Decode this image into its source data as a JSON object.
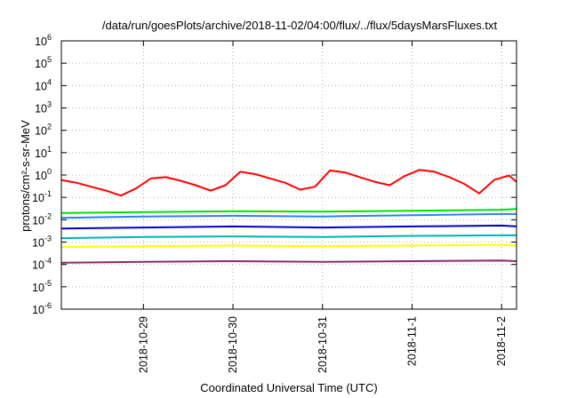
{
  "chart_data": {
    "type": "line",
    "title": "/data/run/goesPlots/archive/2018-11-02/04:00/flux/../flux/5daysMarsFluxes.txt",
    "xlabel": "Coordinated Universal Time (UTC)",
    "ylabel": "protons/cm²-s-sr-MeV",
    "y_scale": "log",
    "ylim": [
      1e-06,
      1000000.0
    ],
    "xlim": [
      "2018-10-28T02:00",
      "2018-11-02T04:00"
    ],
    "grid": true,
    "x_ticks": [
      "2018-10-29",
      "2018-10-30",
      "2018-10-31",
      "2018-11-1",
      "2018-11-2"
    ],
    "y_ticks": [
      {
        "base": "10",
        "exp": "-6"
      },
      {
        "base": "10",
        "exp": "-5"
      },
      {
        "base": "10",
        "exp": "-4"
      },
      {
        "base": "10",
        "exp": "-3"
      },
      {
        "base": "10",
        "exp": "-2"
      },
      {
        "base": "10",
        "exp": "-1"
      },
      {
        "base": "10",
        "exp": "0"
      },
      {
        "base": "10",
        "exp": "1"
      },
      {
        "base": "10",
        "exp": "2"
      },
      {
        "base": "10",
        "exp": "3"
      },
      {
        "base": "10",
        "exp": "4"
      },
      {
        "base": "10",
        "exp": "5"
      },
      {
        "base": "10",
        "exp": "6"
      }
    ],
    "series": [
      {
        "color": "#ff0000",
        "x": [
          "2018-10-28T02:00",
          "2018-10-28T06:00",
          "2018-10-28T10:00",
          "2018-10-28T14:00",
          "2018-10-28T18:00",
          "2018-10-28T22:00",
          "2018-10-29T02:00",
          "2018-10-29T06:00",
          "2018-10-29T10:00",
          "2018-10-29T14:00",
          "2018-10-29T18:00",
          "2018-10-29T22:00",
          "2018-10-30T02:00",
          "2018-10-30T06:00",
          "2018-10-30T10:00",
          "2018-10-30T14:00",
          "2018-10-30T18:00",
          "2018-10-30T22:00",
          "2018-10-31T02:00",
          "2018-10-31T06:00",
          "2018-10-31T10:00",
          "2018-10-31T14:00",
          "2018-10-31T18:00",
          "2018-10-31T22:00",
          "2018-11-01T02:00",
          "2018-11-01T06:00",
          "2018-11-01T10:00",
          "2018-11-01T14:00",
          "2018-11-01T18:00",
          "2018-11-01T22:00",
          "2018-11-02T02:00",
          "2018-11-02T04:00"
        ],
        "y": [
          0.6,
          0.45,
          0.3,
          0.2,
          0.12,
          0.25,
          0.7,
          0.8,
          0.55,
          0.35,
          0.2,
          0.35,
          1.4,
          1.1,
          0.7,
          0.45,
          0.22,
          0.3,
          1.6,
          1.3,
          0.8,
          0.5,
          0.35,
          0.9,
          1.7,
          1.4,
          0.8,
          0.4,
          0.15,
          0.6,
          0.95,
          0.5
        ]
      },
      {
        "color": "#00e000",
        "x": [
          "2018-10-28T02:00",
          "2018-10-29T00:00",
          "2018-10-30T00:00",
          "2018-10-31T00:00",
          "2018-11-01T00:00",
          "2018-11-02T00:00",
          "2018-11-02T04:00"
        ],
        "y": [
          0.02,
          0.022,
          0.024,
          0.023,
          0.025,
          0.028,
          0.03
        ]
      },
      {
        "color": "#2a80ff",
        "x": [
          "2018-10-28T02:00",
          "2018-10-29T00:00",
          "2018-10-30T00:00",
          "2018-10-31T00:00",
          "2018-11-01T00:00",
          "2018-11-02T00:00",
          "2018-11-02T04:00"
        ],
        "y": [
          0.012,
          0.014,
          0.015,
          0.014,
          0.016,
          0.018,
          0.018
        ]
      },
      {
        "color": "#0000cc",
        "x": [
          "2018-10-28T02:00",
          "2018-10-29T00:00",
          "2018-10-30T00:00",
          "2018-10-31T00:00",
          "2018-11-01T00:00",
          "2018-11-02T00:00",
          "2018-11-02T04:00"
        ],
        "y": [
          0.004,
          0.0045,
          0.005,
          0.0045,
          0.005,
          0.0055,
          0.005
        ]
      },
      {
        "color": "#00b4b4",
        "x": [
          "2018-10-28T02:00",
          "2018-10-29T00:00",
          "2018-10-30T00:00",
          "2018-10-31T00:00",
          "2018-11-01T00:00",
          "2018-11-02T00:00",
          "2018-11-02T04:00"
        ],
        "y": [
          0.0015,
          0.0017,
          0.0018,
          0.0017,
          0.0019,
          0.002,
          0.002
        ]
      },
      {
        "color": "#ffff00",
        "x": [
          "2018-10-28T02:00",
          "2018-10-29T00:00",
          "2018-10-30T00:00",
          "2018-10-31T00:00",
          "2018-11-01T00:00",
          "2018-11-02T00:00",
          "2018-11-02T04:00"
        ],
        "y": [
          0.0006,
          0.00065,
          0.0007,
          0.00065,
          0.0007,
          0.00075,
          0.0007
        ]
      },
      {
        "color": "#8b2a6a",
        "x": [
          "2018-10-28T02:00",
          "2018-10-29T00:00",
          "2018-10-30T00:00",
          "2018-10-31T00:00",
          "2018-11-01T00:00",
          "2018-11-02T00:00",
          "2018-11-02T04:00"
        ],
        "y": [
          0.00012,
          0.00013,
          0.00014,
          0.00013,
          0.00014,
          0.00015,
          0.00014
        ]
      }
    ]
  }
}
